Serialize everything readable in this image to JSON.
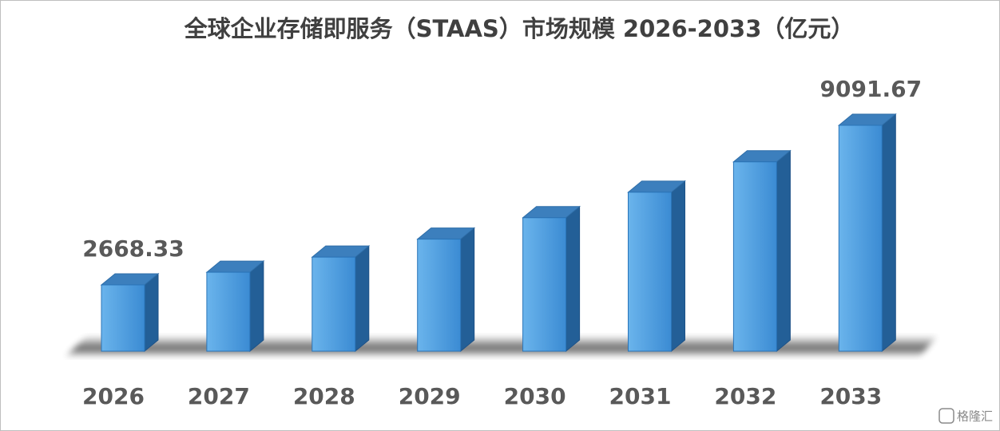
{
  "chart_data": {
    "type": "bar3d",
    "title": "全球企业存储即服务（STAAS）市场规模 2026-2033（亿元）",
    "categories": [
      "2026",
      "2027",
      "2028",
      "2029",
      "2030",
      "2031",
      "2032",
      "2033"
    ],
    "values": [
      2668.33,
      3178,
      3786,
      4510,
      5372,
      6398,
      7621,
      9091.67
    ],
    "value_labels": [
      "2668.33",
      null,
      null,
      null,
      null,
      null,
      null,
      "9091.67"
    ],
    "color": "#4a9be0",
    "watermark": "格隆汇"
  }
}
